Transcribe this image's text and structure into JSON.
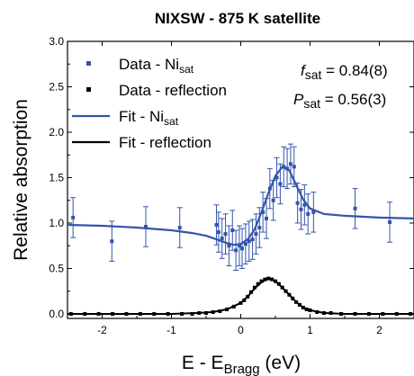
{
  "chart_data": {
    "type": "scatter",
    "title": "NIXSW - 875 K satellite",
    "xlabel_main": "E - E",
    "xlabel_sub": "Bragg",
    "xlabel_unit": " (eV)",
    "ylabel": "Relative absorption",
    "xlim": [
      -2.5,
      2.5
    ],
    "ylim": [
      -0.05,
      3.0
    ],
    "xticks": [
      -2,
      -1,
      0,
      1,
      2
    ],
    "yticks": [
      0.0,
      0.5,
      1.0,
      1.5,
      2.0,
      2.5,
      3.0
    ],
    "xtick_labels": [
      "-2",
      "-1",
      "0",
      "1",
      "2"
    ],
    "ytick_labels": [
      "0.0",
      "0.5",
      "1.0",
      "1.5",
      "2.0",
      "2.5",
      "3.0"
    ],
    "grid": false,
    "legend_position": "top-left",
    "annotations": {
      "f_sym": "f",
      "f_sub": "sat",
      "f_val": " = 0.84(8)",
      "p_sym": "P",
      "p_sub": "sat",
      "p_val": " = 0.56(3)"
    },
    "legend": {
      "data_ni_main": "Data - Ni",
      "data_ni_sub": "sat",
      "data_refl": "Data - reflection",
      "fit_ni_main": "Fit - Ni",
      "fit_ni_sub": "sat",
      "fit_refl": "Fit - reflection"
    },
    "colors": {
      "ni": "#3355aa",
      "reflection": "#000000"
    },
    "series": [
      {
        "name": "Data - Ni_sat",
        "kind": "points_with_error",
        "x": [
          -2.42,
          -1.86,
          -1.37,
          -0.88,
          -0.35,
          -0.32,
          -0.27,
          -0.22,
          -0.17,
          -0.12,
          -0.07,
          -0.02,
          0.02,
          0.07,
          0.12,
          0.17,
          0.22,
          0.27,
          0.32,
          0.37,
          0.42,
          0.47,
          0.52,
          0.57,
          0.62,
          0.67,
          0.72,
          0.77,
          0.82,
          0.87,
          0.92,
          0.97,
          1.05,
          1.65,
          2.15
        ],
        "y": [
          1.06,
          0.8,
          0.96,
          0.95,
          0.98,
          0.9,
          0.83,
          0.88,
          0.75,
          0.92,
          0.7,
          0.75,
          0.72,
          0.77,
          0.8,
          0.82,
          0.88,
          0.95,
          1.12,
          1.05,
          1.38,
          1.25,
          1.5,
          1.43,
          1.62,
          1.6,
          1.65,
          1.62,
          1.22,
          1.15,
          1.2,
          1.1,
          1.12,
          1.16,
          1.01
        ],
        "err": [
          0.22,
          0.22,
          0.22,
          0.22,
          0.22,
          0.22,
          0.22,
          0.22,
          0.22,
          0.22,
          0.22,
          0.22,
          0.22,
          0.22,
          0.22,
          0.22,
          0.22,
          0.22,
          0.22,
          0.22,
          0.22,
          0.22,
          0.22,
          0.22,
          0.22,
          0.22,
          0.22,
          0.22,
          0.22,
          0.22,
          0.22,
          0.22,
          0.22,
          0.22,
          0.22
        ]
      },
      {
        "name": "Fit - Ni_sat",
        "kind": "line",
        "x": [
          -2.5,
          -2.0,
          -1.5,
          -1.0,
          -0.7,
          -0.5,
          -0.35,
          -0.2,
          -0.1,
          0.0,
          0.1,
          0.2,
          0.3,
          0.4,
          0.5,
          0.6,
          0.7,
          0.8,
          0.9,
          1.0,
          1.2,
          1.5,
          2.0,
          2.5
        ],
        "y": [
          0.98,
          0.97,
          0.95,
          0.92,
          0.89,
          0.86,
          0.82,
          0.78,
          0.76,
          0.77,
          0.82,
          0.93,
          1.12,
          1.33,
          1.52,
          1.62,
          1.58,
          1.42,
          1.26,
          1.16,
          1.1,
          1.08,
          1.06,
          1.05
        ]
      },
      {
        "name": "Data - reflection",
        "kind": "points",
        "x": [
          -2.45,
          -2.25,
          -2.05,
          -1.85,
          -1.65,
          -1.45,
          -1.25,
          -1.05,
          -0.85,
          -0.7,
          -0.6,
          -0.5,
          -0.4,
          -0.3,
          -0.2,
          -0.1,
          0.0,
          0.05,
          0.1,
          0.15,
          0.2,
          0.25,
          0.3,
          0.35,
          0.4,
          0.45,
          0.5,
          0.55,
          0.6,
          0.65,
          0.7,
          0.75,
          0.8,
          0.85,
          0.9,
          0.95,
          1.0,
          1.1,
          1.2,
          1.3,
          1.45,
          1.65,
          1.85,
          2.05,
          2.25,
          2.45
        ],
        "y": [
          0.0,
          0.0,
          0.0,
          0.0,
          0.0,
          0.0,
          0.0,
          0.0,
          0.0,
          0.0,
          0.01,
          0.01,
          0.02,
          0.03,
          0.05,
          0.08,
          0.12,
          0.15,
          0.19,
          0.24,
          0.29,
          0.33,
          0.36,
          0.38,
          0.39,
          0.38,
          0.36,
          0.33,
          0.29,
          0.25,
          0.21,
          0.17,
          0.13,
          0.1,
          0.07,
          0.05,
          0.04,
          0.02,
          0.01,
          0.01,
          0.0,
          0.0,
          0.0,
          0.0,
          0.0,
          0.0
        ]
      },
      {
        "name": "Fit - reflection",
        "kind": "line",
        "x": [
          -2.5,
          -1.0,
          -0.6,
          -0.4,
          -0.2,
          0.0,
          0.1,
          0.2,
          0.3,
          0.4,
          0.5,
          0.6,
          0.7,
          0.8,
          0.9,
          1.0,
          1.2,
          1.5,
          2.5
        ],
        "y": [
          0.0,
          0.0,
          0.01,
          0.02,
          0.05,
          0.12,
          0.19,
          0.28,
          0.35,
          0.39,
          0.36,
          0.29,
          0.21,
          0.13,
          0.07,
          0.04,
          0.01,
          0.0,
          0.0
        ]
      }
    ]
  }
}
